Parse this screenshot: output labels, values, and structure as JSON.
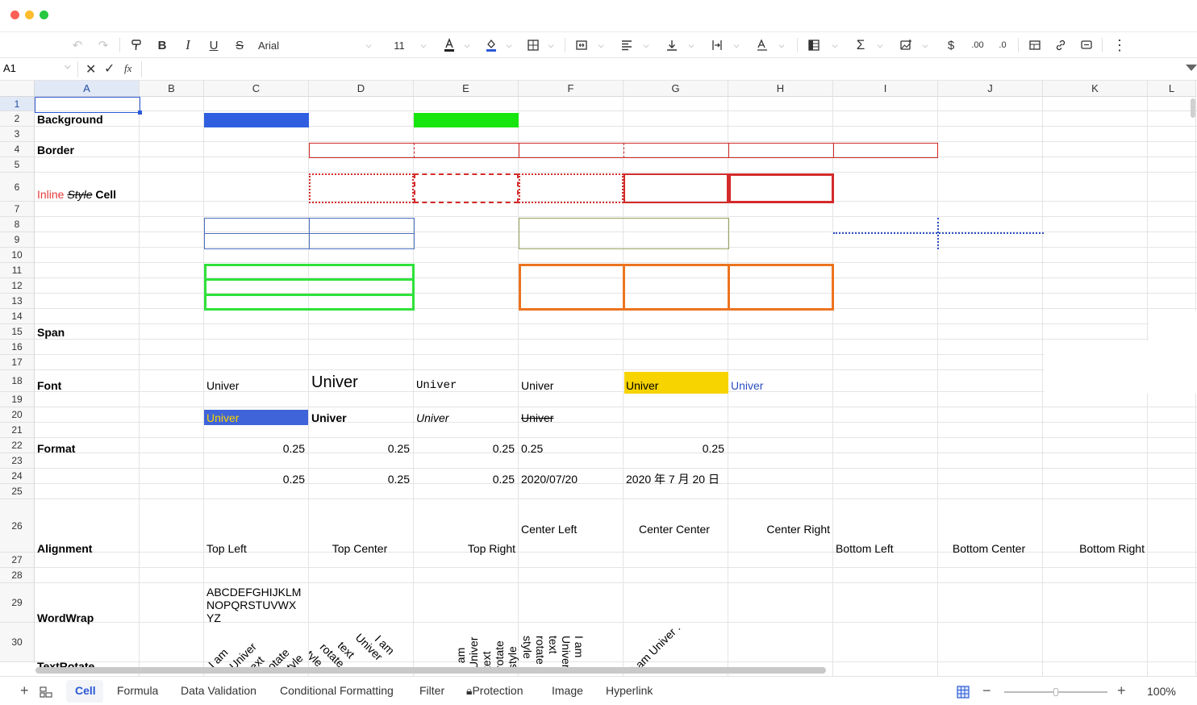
{
  "window": {
    "traffic": [
      "#fe5f57",
      "#febc2e",
      "#28c840"
    ]
  },
  "toolbar": {
    "font_name": "Arial",
    "font_size": "11",
    "icons": [
      "undo-icon",
      "redo-icon",
      "format-painter-icon",
      "bold-icon",
      "italic-icon",
      "underline-icon",
      "strikethrough-icon",
      "font-color-icon",
      "fill-color-icon",
      "border-icon",
      "merge-cells-icon",
      "horizontal-align-icon",
      "vertical-align-icon",
      "text-wrap-icon",
      "text-rotate-icon",
      "freeze-icon",
      "function-icon",
      "image-icon",
      "currency-icon",
      "increase-decimal-icon",
      "decrease-decimal-icon",
      "table-icon",
      "link-icon",
      "comment-icon",
      "more-icon"
    ]
  },
  "formula_bar": {
    "cell_ref": "A1",
    "fx": "fx",
    "value": ""
  },
  "columns": [
    "A",
    "B",
    "C",
    "D",
    "E",
    "F",
    "G",
    "H",
    "I",
    "J",
    "K",
    "L"
  ],
  "rows": [
    "1",
    "2",
    "3",
    "4",
    "5",
    "6",
    "7",
    "8",
    "9",
    "10",
    "11",
    "12",
    "13",
    "14",
    "15",
    "16",
    "17",
    "18",
    "19",
    "20",
    "21",
    "22",
    "23",
    "24",
    "25",
    "26",
    "27",
    "28",
    "29",
    "30"
  ],
  "selected_cell": "A1",
  "section_labels": {
    "background": "Background",
    "border": "Border",
    "span": "Span",
    "font": "Font",
    "format": "Format",
    "alignment": "Alignment",
    "wordwrap": "WordWrap",
    "textrotate": "TextRotate"
  },
  "inline_style": {
    "part1": "Inline",
    "part2": "Style",
    "part3": "Cell"
  },
  "colors": {
    "bg_blue": "#2f5fe0",
    "bg_green": "#17e60e",
    "border_red": "#d42a2a",
    "border_green": "#2fe23a",
    "border_orange": "#ec7420",
    "border_navy": "#4a6fbf",
    "border_olive": "#9aa35f",
    "font_yellow_bg": "#f7d300",
    "font_blue": "#2c4ec2",
    "font_red": "#e63a3a"
  },
  "font_row18": [
    "Univer",
    "Univer",
    "Univer",
    "Univer",
    "Univer",
    "Univer"
  ],
  "font_row20": [
    "Univer",
    "Univer",
    "Univer",
    "Univer"
  ],
  "format_row22": [
    "0.25",
    "0.25",
    "0.25",
    "0.25",
    "0.25"
  ],
  "format_row24": [
    "0.25",
    "0.25",
    "0.25",
    "2020/07/20",
    "2020 年 7 月 20 日"
  ],
  "alignment_cells": [
    "Top Left",
    "Top Center",
    "Top Right",
    "Center Left",
    "Center Center",
    "Center Right",
    "Bottom Left",
    "Bottom Center",
    "Bottom Right"
  ],
  "wordwrap_lines": [
    "ABCDEFGHIJKLM",
    "NOPQRSTUVWX",
    "YZ"
  ],
  "rotate_words": {
    "c": [
      "I am",
      "Univer",
      "text",
      "rotate",
      "style"
    ],
    "d": [
      "style",
      "rotate",
      "text",
      "Univer",
      "I am"
    ],
    "e": [
      "I am",
      "Univer",
      "text",
      "rotate",
      "style"
    ],
    "f": [
      "style",
      "rotate",
      "text",
      "Univer",
      "I am"
    ],
    "g": "I am Univer ..."
  },
  "sheet_tabs": [
    "Cell",
    "Formula",
    "Data Validation",
    "Conditional Formatting",
    "Filter",
    "Protection",
    "Image",
    "Hyperlink"
  ],
  "active_tab": "Cell",
  "zoom": {
    "label": "100%",
    "value": 1.0
  }
}
